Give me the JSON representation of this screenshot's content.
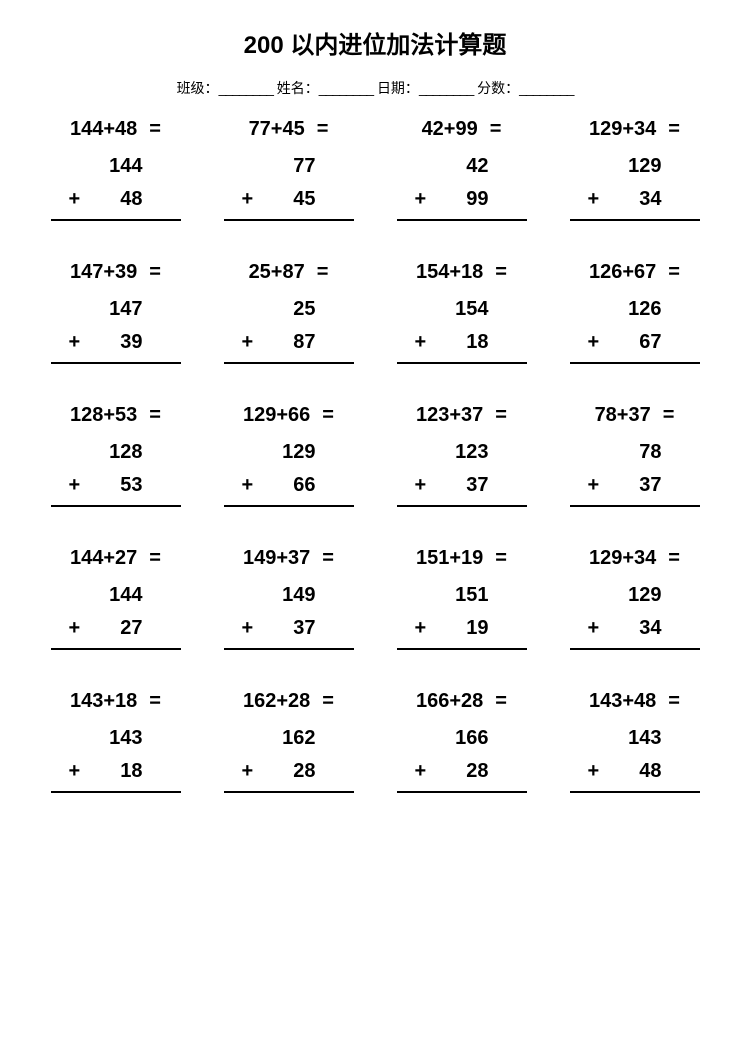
{
  "title": "200 以内进位加法计算题",
  "header": {
    "class_label": "班级：",
    "name_label": "姓名：",
    "date_label": "日期：",
    "score_label": "分数：",
    "blank": "________"
  },
  "layout": {
    "columns": 4,
    "rows": 5,
    "background_color": "#ffffff",
    "text_color": "#000000",
    "title_fontsize": 24,
    "header_fontsize": 14,
    "problem_fontsize": 20,
    "line_color": "#000000",
    "line_width": 2.5
  },
  "problems": [
    {
      "a": "144",
      "b": "48",
      "expr": "144+48"
    },
    {
      "a": "77",
      "b": "45",
      "expr": "77+45"
    },
    {
      "a": "42",
      "b": "99",
      "expr": "42+99"
    },
    {
      "a": "129",
      "b": "34",
      "expr": "129+34"
    },
    {
      "a": "147",
      "b": "39",
      "expr": "147+39"
    },
    {
      "a": "25",
      "b": "87",
      "expr": "25+87"
    },
    {
      "a": "154",
      "b": "18",
      "expr": "154+18"
    },
    {
      "a": "126",
      "b": "67",
      "expr": "126+67"
    },
    {
      "a": "128",
      "b": "53",
      "expr": "128+53"
    },
    {
      "a": "129",
      "b": "66",
      "expr": "129+66"
    },
    {
      "a": "123",
      "b": "37",
      "expr": "123+37"
    },
    {
      "a": "78",
      "b": "37",
      "expr": "78+37"
    },
    {
      "a": "144",
      "b": "27",
      "expr": "144+27"
    },
    {
      "a": "149",
      "b": "37",
      "expr": "149+37"
    },
    {
      "a": "151",
      "b": "19",
      "expr": "151+19"
    },
    {
      "a": "129",
      "b": "34",
      "expr": "129+34"
    },
    {
      "a": "143",
      "b": "18",
      "expr": "143+18"
    },
    {
      "a": "162",
      "b": "28",
      "expr": "162+28"
    },
    {
      "a": "166",
      "b": "28",
      "expr": "166+28"
    },
    {
      "a": "143",
      "b": "48",
      "expr": "143+48"
    }
  ],
  "symbols": {
    "equals": "=",
    "plus": "+"
  }
}
